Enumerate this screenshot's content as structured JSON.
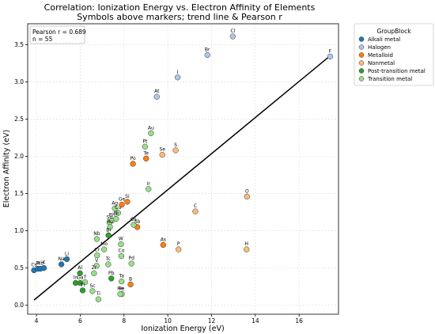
{
  "chart_data": {
    "type": "scatter",
    "title": "Correlation: Ionization Energy vs. Electron Affinity of Elements",
    "subtitle": "Symbols above markers; trend line & Pearson r",
    "xlabel": "Ionization Energy (eV)",
    "ylabel": "Electron Affinity (eV)",
    "xlim": [
      3.6,
      17.8
    ],
    "ylim": [
      -0.12,
      3.78
    ],
    "xticks": [
      4,
      6,
      8,
      10,
      12,
      14,
      16
    ],
    "xtick_labels": [
      "4",
      "6",
      "8",
      "10",
      "12",
      "14",
      "16"
    ],
    "yticks": [
      0.0,
      0.5,
      1.0,
      1.5,
      2.0,
      2.5,
      3.0,
      3.5
    ],
    "ytick_labels": [
      "0.0",
      "0.5",
      "1.0",
      "1.5",
      "2.0",
      "2.5",
      "3.0",
      "3.5"
    ],
    "grid": true,
    "stats": {
      "pearson_label": "Pearson r = 0.689",
      "n_label": "n = 55"
    },
    "trend_line": {
      "x": [
        3.89,
        17.42
      ],
      "y": [
        0.07,
        3.35
      ]
    },
    "legend": {
      "title": "GroupBlock",
      "placement": "outside-right",
      "entries": [
        "Alkali metal",
        "Halogen",
        "Metalloid",
        "Nonmetal",
        "Post-transition metal",
        "Transition metal"
      ]
    },
    "colors": {
      "Alkali metal": "#1f77b4",
      "Halogen": "#aec7e8",
      "Metalloid": "#ff7f0e",
      "Nonmetal": "#ffbb78",
      "Post-transition metal": "#2ca02c",
      "Transition metal": "#98df8a",
      "trend": "#000000"
    },
    "series": [
      {
        "name": "Alkali metal",
        "points": [
          {
            "label": "Cs",
            "x": 3.89,
            "y": 0.47
          },
          {
            "label": "Fr",
            "x": 4.07,
            "y": 0.49
          },
          {
            "label": "Rb",
            "x": 4.18,
            "y": 0.49
          },
          {
            "label": "K",
            "x": 4.34,
            "y": 0.5
          },
          {
            "label": "Na",
            "x": 5.14,
            "y": 0.55
          },
          {
            "label": "Li",
            "x": 5.39,
            "y": 0.62
          }
        ]
      },
      {
        "name": "Halogen",
        "points": [
          {
            "label": "Cl",
            "x": 12.97,
            "y": 3.61
          },
          {
            "label": "Br",
            "x": 11.81,
            "y": 3.36
          },
          {
            "label": "I",
            "x": 10.45,
            "y": 3.06
          },
          {
            "label": "At",
            "x": 9.5,
            "y": 2.8
          },
          {
            "label": "F",
            "x": 17.42,
            "y": 3.34
          }
        ]
      },
      {
        "name": "Metalloid",
        "points": [
          {
            "label": "Te",
            "x": 9.01,
            "y": 1.97
          },
          {
            "label": "Po",
            "x": 8.41,
            "y": 1.9
          },
          {
            "label": "Si",
            "x": 8.15,
            "y": 1.39
          },
          {
            "label": "Ge",
            "x": 7.9,
            "y": 1.35
          },
          {
            "label": "Sb",
            "x": 8.61,
            "y": 1.05
          },
          {
            "label": "As",
            "x": 9.79,
            "y": 0.81
          },
          {
            "label": "B",
            "x": 8.3,
            "y": 0.28
          }
        ]
      },
      {
        "name": "Nonmetal",
        "points": [
          {
            "label": "S",
            "x": 10.36,
            "y": 2.08
          },
          {
            "label": "Se",
            "x": 9.75,
            "y": 2.02
          },
          {
            "label": "O",
            "x": 13.62,
            "y": 1.46
          },
          {
            "label": "C",
            "x": 11.26,
            "y": 1.26
          },
          {
            "label": "P",
            "x": 10.49,
            "y": 0.75
          },
          {
            "label": "H",
            "x": 13.6,
            "y": 0.75
          }
        ]
      },
      {
        "name": "Post-transition metal",
        "points": [
          {
            "label": "Al",
            "x": 5.99,
            "y": 0.43
          },
          {
            "label": "Pb",
            "x": 7.42,
            "y": 0.36
          },
          {
            "label": "In",
            "x": 5.79,
            "y": 0.3
          },
          {
            "label": "Ga",
            "x": 6.0,
            "y": 0.3
          },
          {
            "label": "Tl",
            "x": 6.11,
            "y": 0.2
          },
          {
            "label": "Bi",
            "x": 7.29,
            "y": 0.94
          }
        ]
      },
      {
        "name": "Transition metal",
        "points": [
          {
            "label": "Au",
            "x": 9.23,
            "y": 2.31
          },
          {
            "label": "Pt",
            "x": 8.96,
            "y": 2.13
          },
          {
            "label": "Ir",
            "x": 9.12,
            "y": 1.56
          },
          {
            "label": "Ag",
            "x": 7.58,
            "y": 1.3
          },
          {
            "label": "Cu",
            "x": 7.73,
            "y": 1.24
          },
          {
            "label": "Sn",
            "x": 7.34,
            "y": 1.11
          },
          {
            "label": "Rh",
            "x": 7.46,
            "y": 1.14
          },
          {
            "label": "Ni",
            "x": 7.64,
            "y": 1.16
          },
          {
            "label": "Pd",
            "x": 8.34,
            "y": 0.56
          },
          {
            "label": "Os",
            "x": 8.44,
            "y": 1.08
          },
          {
            "label": "Ru",
            "x": 7.36,
            "y": 1.05
          },
          {
            "label": "Nb",
            "x": 6.76,
            "y": 0.89
          },
          {
            "label": "W",
            "x": 7.86,
            "y": 0.82
          },
          {
            "label": "Mo",
            "x": 7.09,
            "y": 0.75
          },
          {
            "label": "Cr",
            "x": 6.77,
            "y": 0.67
          },
          {
            "label": "Co",
            "x": 7.88,
            "y": 0.66
          },
          {
            "label": "Tc",
            "x": 7.28,
            "y": 0.55
          },
          {
            "label": "Zr",
            "x": 6.63,
            "y": 0.43
          },
          {
            "label": "V",
            "x": 6.75,
            "y": 0.53
          },
          {
            "label": "Ta",
            "x": 7.89,
            "y": 0.32
          },
          {
            "label": "Y",
            "x": 6.22,
            "y": 0.31
          },
          {
            "label": "Sc",
            "x": 6.56,
            "y": 0.19
          },
          {
            "label": "Ti",
            "x": 6.83,
            "y": 0.08
          },
          {
            "label": "Fe",
            "x": 7.9,
            "y": 0.15
          },
          {
            "label": "Re",
            "x": 7.83,
            "y": 0.15
          }
        ]
      }
    ]
  }
}
